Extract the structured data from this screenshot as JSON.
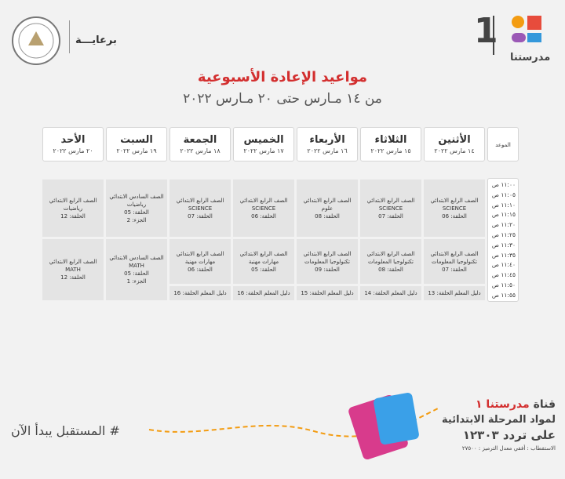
{
  "header": {
    "sponsor": "برعايـــة",
    "logo_number": "1",
    "logo_text": "مدرستنا"
  },
  "title": "مواعيد الإعادة الأسبوعية",
  "subtitle": "من ١٤ مـارس حتى ٢٠ مـارس ٢٠٢٢",
  "table": {
    "time_header": "الموعد",
    "times": [
      "١١:٠٠ ص",
      "١١:٠٥ ص",
      "١١:١٠ ص",
      "١١:١٥ ص",
      "١١:٢٠ ص",
      "١١:٢٥ ص",
      "١١:٣٠ ص",
      "١١:٣٥ ص",
      "١١:٤٠ ص",
      "١١:٤٥ ص",
      "١١:٥٠ ص",
      "١١:٥٥ ص"
    ],
    "days": [
      {
        "name": "الأثنين",
        "date": "١٤ مارس ٢٠٢٢",
        "slots": [
          [
            "الصف الرابع الابتدائي",
            "SCIENCE",
            "الحلقة: 06"
          ],
          [
            "الصف الرابع الابتدائي",
            "تكنولوجيا المعلومات",
            "الحلقة: 07"
          ]
        ],
        "guide": "دليل المعلم الحلقة: 13"
      },
      {
        "name": "الثلاثاء",
        "date": "١٥ مارس ٢٠٢٢",
        "slots": [
          [
            "الصف الرابع الابتدائي",
            "SCIENCE",
            "الحلقة: 07"
          ],
          [
            "الصف الرابع الابتدائي",
            "تكنولوجيا المعلومات",
            "الحلقة: 08"
          ]
        ],
        "guide": "دليل المعلم الحلقة: 14"
      },
      {
        "name": "الأربعاء",
        "date": "١٦ مارس ٢٠٢٢",
        "slots": [
          [
            "الصف الرابع الابتدائي",
            "علوم",
            "الحلقة: 08"
          ],
          [
            "الصف الرابع الابتدائي",
            "تكنولوجيا المعلومات",
            "الحلقة: 09"
          ]
        ],
        "guide": "دليل المعلم الحلقة: 15"
      },
      {
        "name": "الخميس",
        "date": "١٧ مارس ٢٠٢٢",
        "slots": [
          [
            "الصف الرابع الابتدائي",
            "SCIENCE",
            "الحلقة: 06"
          ],
          [
            "الصف الرابع الابتدائي",
            "مهارات مهنية",
            "الحلقة: 05"
          ]
        ],
        "guide": "دليل المعلم الحلقة: 16"
      },
      {
        "name": "الجمعة",
        "date": "١٨ مارس ٢٠٢٢",
        "slots": [
          [
            "الصف الرابع الابتدائي",
            "SCIENCE",
            "الحلقة: 07"
          ],
          [
            "الصف الرابع الابتدائي",
            "مهارات مهنية",
            "الحلقة: 06"
          ]
        ],
        "guide": "دليل المعلم الحلقة: 16"
      },
      {
        "name": "السبت",
        "date": "١٩ مارس ٢٠٢٢",
        "slots": [
          [
            "الصف السادس الابتدائي",
            "رياضيات",
            "الحلقة: 05",
            "الجزء: 2"
          ],
          [
            "الصف السادس الابتدائي",
            "MATH",
            "الحلقة: 05",
            "الجزء: 1"
          ]
        ]
      },
      {
        "name": "الأحد",
        "date": "٢٠ مارس ٢٠٢٢",
        "slots": [
          [
            "الصف الرابع الابتدائي",
            "رياضيات",
            "الحلقة: 12"
          ],
          [
            "الصف الرابع الابتدائي",
            "MATH",
            "الحلقة: 12"
          ]
        ]
      }
    ]
  },
  "footer": {
    "hashtag": "# المستقبل يبدأ الآن",
    "channel_prefix": "قناة",
    "channel_name": "مدرستنا ١",
    "line2": "لمواد المرحلة الابتدائية",
    "line3": "على تردد ١٢٣٠٣",
    "line4": "الاستقطاب : أفقي معدل الترميز : ٢٧٥٠٠"
  }
}
